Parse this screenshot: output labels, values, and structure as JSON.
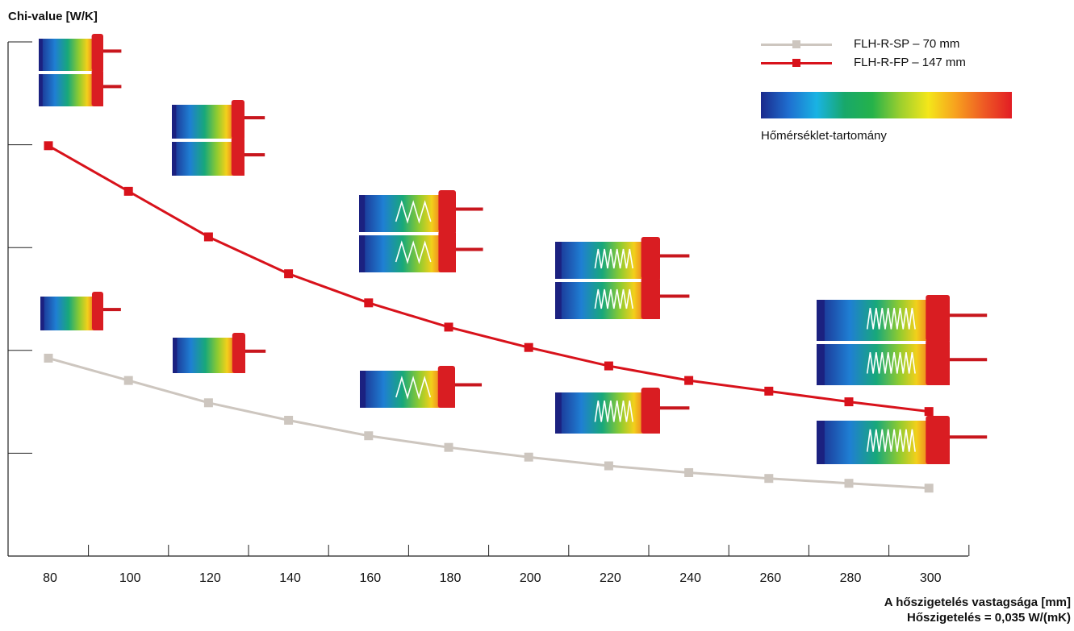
{
  "chart_data": {
    "type": "line",
    "title": "",
    "ylabel": "Chi-value [W/K]",
    "xlabel_lines": [
      "A hőszigetelés vastagsága [mm]",
      "Hőszigetelés = 0,035 W/(mK)"
    ],
    "x": [
      80,
      100,
      120,
      140,
      160,
      180,
      200,
      220,
      240,
      260,
      280,
      300
    ],
    "xticks": [
      "80",
      "100",
      "120",
      "140",
      "160",
      "180",
      "200",
      "220",
      "240",
      "260",
      "280",
      "300"
    ],
    "ylim": [
      0,
      5.3
    ],
    "yticks_count": 5,
    "series": [
      {
        "name": "FLH-R-SP – 70 mm",
        "color": "#cdc6bf",
        "values": [
          2.04,
          1.81,
          1.58,
          1.4,
          1.24,
          1.12,
          1.02,
          0.93,
          0.86,
          0.8,
          0.75,
          0.7
        ]
      },
      {
        "name": "FLH-R-FP – 147 mm",
        "color": "#d8121b",
        "values": [
          4.23,
          3.76,
          3.29,
          2.91,
          2.61,
          2.36,
          2.15,
          1.96,
          1.81,
          1.7,
          1.59,
          1.49
        ]
      }
    ],
    "legend_position": "top-right",
    "grid": false,
    "colorbar": {
      "label": "Hőmérséklet-tartomány",
      "colors": [
        "#1b2a8c",
        "#1f6fd0",
        "#19b3e3",
        "#18a86a",
        "#25b24a",
        "#9ccf2e",
        "#f4e61a",
        "#f7a01e",
        "#ee5a24",
        "#e21d24"
      ]
    }
  }
}
